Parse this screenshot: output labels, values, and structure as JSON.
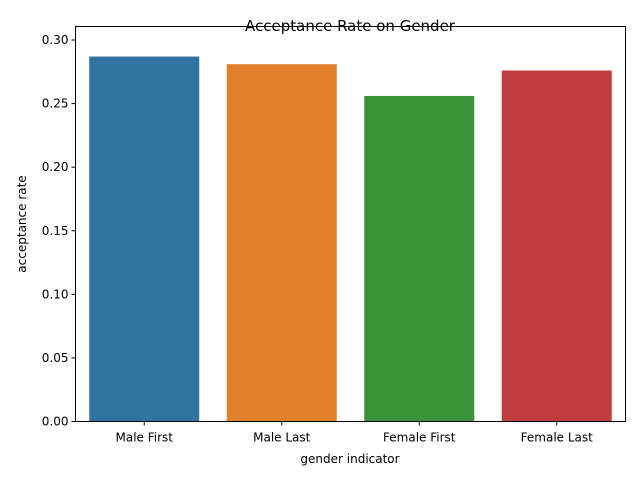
{
  "chart_data": {
    "type": "bar",
    "title": "Acceptance Rate on Gender",
    "xlabel": "gender indicator",
    "ylabel": "acceptance rate",
    "categories": [
      "Male First",
      "Male Last",
      "Female First",
      "Female Last"
    ],
    "values": [
      0.287,
      0.281,
      0.256,
      0.276
    ],
    "colors": [
      "#3274a1",
      "#e1812c",
      "#3a923a",
      "#c03d3e"
    ],
    "ylim": [
      0,
      0.3
    ],
    "yticks": [
      0.0,
      0.05,
      0.1,
      0.15,
      0.2,
      0.25,
      0.3
    ],
    "ytick_labels": [
      "0.00",
      "0.05",
      "0.10",
      "0.15",
      "0.20",
      "0.25",
      "0.30"
    ],
    "grid": false,
    "legend": false
  }
}
